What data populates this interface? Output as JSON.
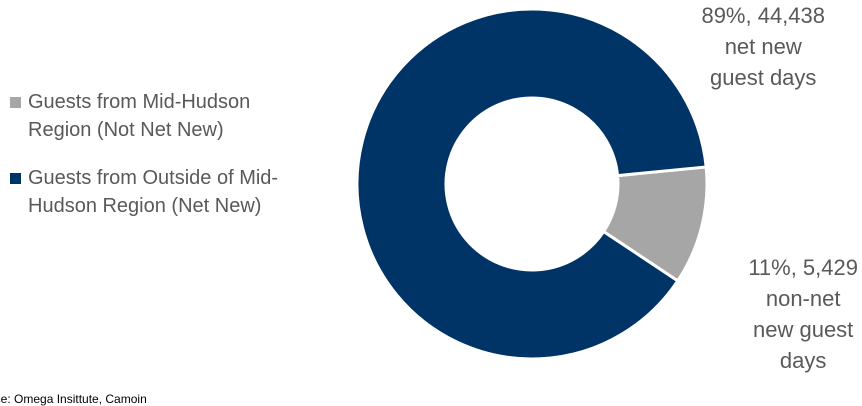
{
  "chart_data": {
    "type": "pie",
    "subtype": "donut",
    "title": "",
    "categories": [
      "Guests from Mid-Hudson Region (Not Net New)",
      "Guests from Outside of Mid-Hudson Region (Net New)"
    ],
    "values": [
      5429,
      44438
    ],
    "percents": [
      11,
      89
    ],
    "colors": [
      "#a6a6a6",
      "#003366"
    ],
    "legend_position": "left",
    "data_labels": [
      {
        "lines": [
          "11%, 5,429",
          "non-net",
          "new guest",
          "days"
        ]
      },
      {
        "lines": [
          "89%, 44,438",
          "net new",
          "guest days"
        ]
      }
    ]
  },
  "legend": [
    {
      "color": "#a6a6a6",
      "line1": "Guests from Mid-Hudson",
      "line2": "Region (Not Net New)"
    },
    {
      "color": "#003366",
      "line1": "Guests from Outside of Mid-",
      "line2": "Hudson Region (Net New)"
    }
  ],
  "source_text": "urce: Omega Insittute, Camoin"
}
